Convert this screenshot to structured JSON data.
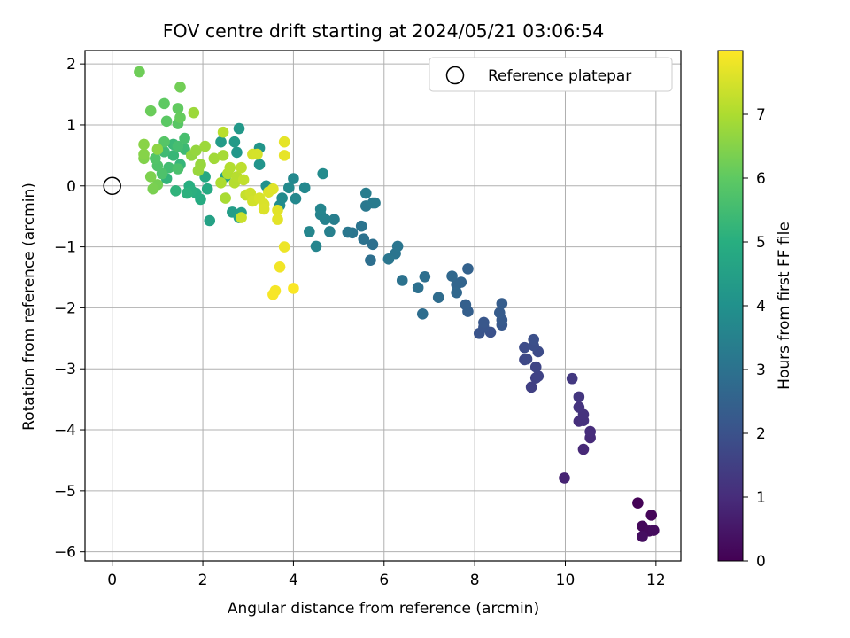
{
  "chart_data": {
    "type": "scatter",
    "title": "FOV centre drift starting at 2024/05/21 03:06:54",
    "xlabel": "Angular distance from reference (arcmin)",
    "ylabel": "Rotation from reference (arcmin)",
    "xlim": [
      -0.6,
      12.55
    ],
    "ylim": [
      -6.15,
      2.22
    ],
    "xticks": [
      0,
      2,
      4,
      6,
      8,
      10,
      12
    ],
    "yticks": [
      -6,
      -5,
      -4,
      -3,
      -2,
      -1,
      0,
      1,
      2
    ],
    "xtick_labels": [
      "0",
      "2",
      "4",
      "6",
      "8",
      "10",
      "12"
    ],
    "ytick_labels": [
      "−6",
      "−5",
      "−4",
      "−3",
      "−2",
      "−1",
      "0",
      "1",
      "2"
    ],
    "grid": true,
    "legend": {
      "position": "top-right",
      "entries": [
        "Reference platepar"
      ]
    },
    "reference_point": {
      "x": 0,
      "y": 0
    },
    "colormap": "viridis",
    "colorbar": {
      "label": "Hours from first FF file",
      "range": [
        0,
        8
      ],
      "ticks": [
        0,
        1,
        2,
        3,
        4,
        5,
        6,
        7
      ],
      "tick_labels": [
        "0",
        "1",
        "2",
        "3",
        "4",
        "5",
        "6",
        "7"
      ]
    },
    "points": [
      {
        "x": 11.6,
        "y": -5.2,
        "h": 0.05
      },
      {
        "x": 11.9,
        "y": -5.4,
        "h": 0.1
      },
      {
        "x": 11.7,
        "y": -5.58,
        "h": 0.15
      },
      {
        "x": 11.85,
        "y": -5.66,
        "h": 0.2
      },
      {
        "x": 11.95,
        "y": -5.65,
        "h": 0.25
      },
      {
        "x": 11.7,
        "y": -5.75,
        "h": 0.3
      },
      {
        "x": 9.98,
        "y": -4.79,
        "h": 0.8
      },
      {
        "x": 10.4,
        "y": -4.32,
        "h": 0.9
      },
      {
        "x": 10.55,
        "y": -4.13,
        "h": 0.95
      },
      {
        "x": 10.55,
        "y": -4.03,
        "h": 1.0
      },
      {
        "x": 10.3,
        "y": -3.86,
        "h": 1.05
      },
      {
        "x": 10.4,
        "y": -3.85,
        "h": 1.1
      },
      {
        "x": 10.4,
        "y": -3.75,
        "h": 1.15
      },
      {
        "x": 10.3,
        "y": -3.63,
        "h": 1.2
      },
      {
        "x": 10.3,
        "y": -3.46,
        "h": 1.25
      },
      {
        "x": 10.15,
        "y": -3.16,
        "h": 1.3
      },
      {
        "x": 9.25,
        "y": -3.3,
        "h": 1.5
      },
      {
        "x": 9.35,
        "y": -3.15,
        "h": 1.55
      },
      {
        "x": 9.4,
        "y": -3.12,
        "h": 1.6
      },
      {
        "x": 9.35,
        "y": -2.97,
        "h": 1.65
      },
      {
        "x": 9.1,
        "y": -2.85,
        "h": 1.7
      },
      {
        "x": 9.15,
        "y": -2.84,
        "h": 1.75
      },
      {
        "x": 9.4,
        "y": -2.72,
        "h": 1.8
      },
      {
        "x": 9.1,
        "y": -2.65,
        "h": 1.85
      },
      {
        "x": 9.3,
        "y": -2.62,
        "h": 1.9
      },
      {
        "x": 9.3,
        "y": -2.52,
        "h": 1.95
      },
      {
        "x": 8.35,
        "y": -2.4,
        "h": 2.0
      },
      {
        "x": 8.1,
        "y": -2.42,
        "h": 2.05
      },
      {
        "x": 8.2,
        "y": -2.32,
        "h": 2.1
      },
      {
        "x": 8.2,
        "y": -2.24,
        "h": 2.15
      },
      {
        "x": 8.6,
        "y": -2.28,
        "h": 2.2
      },
      {
        "x": 8.6,
        "y": -2.2,
        "h": 2.25
      },
      {
        "x": 8.55,
        "y": -2.08,
        "h": 2.3
      },
      {
        "x": 8.6,
        "y": -1.93,
        "h": 2.35
      },
      {
        "x": 7.85,
        "y": -2.06,
        "h": 2.4
      },
      {
        "x": 7.8,
        "y": -1.95,
        "h": 2.45
      },
      {
        "x": 7.85,
        "y": -1.36,
        "h": 2.5
      },
      {
        "x": 7.7,
        "y": -1.58,
        "h": 2.55
      },
      {
        "x": 7.6,
        "y": -1.62,
        "h": 2.6
      },
      {
        "x": 7.6,
        "y": -1.75,
        "h": 2.65
      },
      {
        "x": 7.5,
        "y": -1.48,
        "h": 2.7
      },
      {
        "x": 7.2,
        "y": -1.83,
        "h": 2.8
      },
      {
        "x": 6.85,
        "y": -2.1,
        "h": 2.85
      },
      {
        "x": 6.9,
        "y": -1.49,
        "h": 2.9
      },
      {
        "x": 6.75,
        "y": -1.67,
        "h": 2.95
      },
      {
        "x": 6.4,
        "y": -1.55,
        "h": 3.0
      },
      {
        "x": 6.25,
        "y": -1.11,
        "h": 3.05
      },
      {
        "x": 6.3,
        "y": -0.99,
        "h": 3.1
      },
      {
        "x": 6.1,
        "y": -1.2,
        "h": 3.12
      },
      {
        "x": 5.7,
        "y": -1.22,
        "h": 2.9
      },
      {
        "x": 5.75,
        "y": -0.96,
        "h": 2.95
      },
      {
        "x": 5.55,
        "y": -0.87,
        "h": 3.0
      },
      {
        "x": 5.5,
        "y": -0.66,
        "h": 3.05
      },
      {
        "x": 5.3,
        "y": -0.77,
        "h": 3.1
      },
      {
        "x": 5.2,
        "y": -0.76,
        "h": 3.15
      },
      {
        "x": 5.6,
        "y": -0.33,
        "h": 3.2
      },
      {
        "x": 5.75,
        "y": -0.28,
        "h": 3.25
      },
      {
        "x": 5.8,
        "y": -0.28,
        "h": 3.3
      },
      {
        "x": 5.6,
        "y": -0.12,
        "h": 3.35
      },
      {
        "x": 4.9,
        "y": -0.55,
        "h": 3.4
      },
      {
        "x": 4.8,
        "y": -0.75,
        "h": 3.45
      },
      {
        "x": 4.7,
        "y": -0.55,
        "h": 3.5
      },
      {
        "x": 4.6,
        "y": -0.47,
        "h": 3.55
      },
      {
        "x": 4.6,
        "y": -0.38,
        "h": 3.6
      },
      {
        "x": 4.5,
        "y": -0.99,
        "h": 3.62
      },
      {
        "x": 4.35,
        "y": -0.75,
        "h": 3.65
      },
      {
        "x": 4.25,
        "y": -0.03,
        "h": 3.7
      },
      {
        "x": 4.05,
        "y": -0.21,
        "h": 3.72
      },
      {
        "x": 4.0,
        "y": 0.12,
        "h": 3.75
      },
      {
        "x": 3.9,
        "y": -0.03,
        "h": 3.77
      },
      {
        "x": 4.65,
        "y": 0.2,
        "h": 3.8
      },
      {
        "x": 3.75,
        "y": -0.2,
        "h": 3.82
      },
      {
        "x": 3.7,
        "y": -0.32,
        "h": 3.85
      },
      {
        "x": 3.4,
        "y": 0.0,
        "h": 4.0
      },
      {
        "x": 3.5,
        "y": -0.05,
        "h": 4.05
      },
      {
        "x": 3.25,
        "y": 0.35,
        "h": 4.1
      },
      {
        "x": 3.25,
        "y": 0.62,
        "h": 4.15
      },
      {
        "x": 2.75,
        "y": 0.55,
        "h": 4.2
      },
      {
        "x": 2.8,
        "y": 0.94,
        "h": 4.25
      },
      {
        "x": 2.7,
        "y": 0.72,
        "h": 4.3
      },
      {
        "x": 2.4,
        "y": 0.72,
        "h": 4.35
      },
      {
        "x": 2.65,
        "y": -0.43,
        "h": 4.4
      },
      {
        "x": 2.85,
        "y": -0.44,
        "h": 4.45
      },
      {
        "x": 2.8,
        "y": -0.52,
        "h": 4.5
      },
      {
        "x": 2.15,
        "y": -0.57,
        "h": 4.55
      },
      {
        "x": 2.5,
        "y": 0.15,
        "h": 4.6
      },
      {
        "x": 2.05,
        "y": 0.15,
        "h": 4.8
      },
      {
        "x": 2.1,
        "y": -0.05,
        "h": 4.85
      },
      {
        "x": 1.95,
        "y": -0.22,
        "h": 4.9
      },
      {
        "x": 1.85,
        "y": -0.12,
        "h": 4.95
      },
      {
        "x": 1.7,
        "y": 0.0,
        "h": 5.0
      },
      {
        "x": 1.75,
        "y": -0.08,
        "h": 5.05
      },
      {
        "x": 1.65,
        "y": -0.12,
        "h": 5.1
      },
      {
        "x": 1.4,
        "y": -0.08,
        "h": 5.15
      },
      {
        "x": 1.2,
        "y": 0.12,
        "h": 5.2
      },
      {
        "x": 1.5,
        "y": 0.35,
        "h": 5.25
      },
      {
        "x": 1.35,
        "y": 0.5,
        "h": 5.3
      },
      {
        "x": 1.35,
        "y": 0.68,
        "h": 5.35
      },
      {
        "x": 1.6,
        "y": 0.6,
        "h": 5.4
      },
      {
        "x": 1.15,
        "y": 0.56,
        "h": 5.45
      },
      {
        "x": 1.25,
        "y": 0.3,
        "h": 5.5
      },
      {
        "x": 1.45,
        "y": 0.65,
        "h": 5.55
      },
      {
        "x": 1.6,
        "y": 0.78,
        "h": 5.6
      },
      {
        "x": 1.45,
        "y": 0.28,
        "h": 5.65
      },
      {
        "x": 1.1,
        "y": 0.2,
        "h": 5.7
      },
      {
        "x": 1.0,
        "y": 0.33,
        "h": 5.75
      },
      {
        "x": 0.95,
        "y": 0.45,
        "h": 5.8
      },
      {
        "x": 1.15,
        "y": 0.72,
        "h": 5.85
      },
      {
        "x": 1.45,
        "y": 1.02,
        "h": 5.9
      },
      {
        "x": 1.2,
        "y": 1.06,
        "h": 5.95
      },
      {
        "x": 1.15,
        "y": 1.35,
        "h": 6.0
      },
      {
        "x": 1.45,
        "y": 1.27,
        "h": 6.05
      },
      {
        "x": 1.5,
        "y": 1.12,
        "h": 6.1
      },
      {
        "x": 0.85,
        "y": 1.23,
        "h": 6.15
      },
      {
        "x": 0.6,
        "y": 1.87,
        "h": 6.2
      },
      {
        "x": 1.5,
        "y": 1.62,
        "h": 6.25
      },
      {
        "x": 1.0,
        "y": 0.02,
        "h": 6.3
      },
      {
        "x": 0.9,
        "y": -0.05,
        "h": 6.35
      },
      {
        "x": 0.85,
        "y": 0.15,
        "h": 6.4
      },
      {
        "x": 0.7,
        "y": 0.45,
        "h": 6.45
      },
      {
        "x": 0.7,
        "y": 0.52,
        "h": 6.5
      },
      {
        "x": 0.7,
        "y": 0.68,
        "h": 6.55
      },
      {
        "x": 1.0,
        "y": 0.6,
        "h": 6.6
      },
      {
        "x": 1.75,
        "y": 0.5,
        "h": 6.65
      },
      {
        "x": 1.85,
        "y": 0.58,
        "h": 6.7
      },
      {
        "x": 1.95,
        "y": 0.35,
        "h": 6.72
      },
      {
        "x": 1.9,
        "y": 0.25,
        "h": 6.75
      },
      {
        "x": 1.8,
        "y": 1.2,
        "h": 6.78
      },
      {
        "x": 2.05,
        "y": 0.65,
        "h": 6.8
      },
      {
        "x": 2.25,
        "y": 0.45,
        "h": 6.85
      },
      {
        "x": 2.45,
        "y": 0.5,
        "h": 6.9
      },
      {
        "x": 2.5,
        "y": -0.2,
        "h": 6.95
      },
      {
        "x": 2.4,
        "y": 0.05,
        "h": 7.0
      },
      {
        "x": 2.55,
        "y": 0.2,
        "h": 7.05
      },
      {
        "x": 2.6,
        "y": 0.3,
        "h": 7.08
      },
      {
        "x": 2.7,
        "y": 0.05,
        "h": 7.1
      },
      {
        "x": 2.75,
        "y": 0.15,
        "h": 7.12
      },
      {
        "x": 2.45,
        "y": 0.88,
        "h": 7.15
      },
      {
        "x": 2.85,
        "y": 0.3,
        "h": 7.2
      },
      {
        "x": 2.9,
        "y": 0.1,
        "h": 7.25
      },
      {
        "x": 2.95,
        "y": -0.15,
        "h": 7.3
      },
      {
        "x": 2.85,
        "y": -0.52,
        "h": 7.35
      },
      {
        "x": 3.05,
        "y": -0.12,
        "h": 7.4
      },
      {
        "x": 3.1,
        "y": -0.25,
        "h": 7.45
      },
      {
        "x": 3.1,
        "y": 0.52,
        "h": 7.48
      },
      {
        "x": 3.2,
        "y": 0.52,
        "h": 7.5
      },
      {
        "x": 3.25,
        "y": -0.2,
        "h": 7.52
      },
      {
        "x": 3.35,
        "y": -0.3,
        "h": 7.55
      },
      {
        "x": 3.35,
        "y": -0.38,
        "h": 7.58
      },
      {
        "x": 3.45,
        "y": -0.1,
        "h": 7.6
      },
      {
        "x": 3.55,
        "y": -0.05,
        "h": 7.63
      },
      {
        "x": 3.65,
        "y": -0.4,
        "h": 7.65
      },
      {
        "x": 3.65,
        "y": -0.55,
        "h": 7.68
      },
      {
        "x": 3.8,
        "y": 0.72,
        "h": 7.7
      },
      {
        "x": 3.8,
        "y": 0.5,
        "h": 7.72
      },
      {
        "x": 3.8,
        "y": -1.0,
        "h": 7.8
      },
      {
        "x": 3.7,
        "y": -1.33,
        "h": 7.85
      },
      {
        "x": 3.6,
        "y": -1.72,
        "h": 7.9
      },
      {
        "x": 3.55,
        "y": -1.78,
        "h": 7.93
      },
      {
        "x": 4.0,
        "y": -1.68,
        "h": 7.96
      }
    ]
  }
}
